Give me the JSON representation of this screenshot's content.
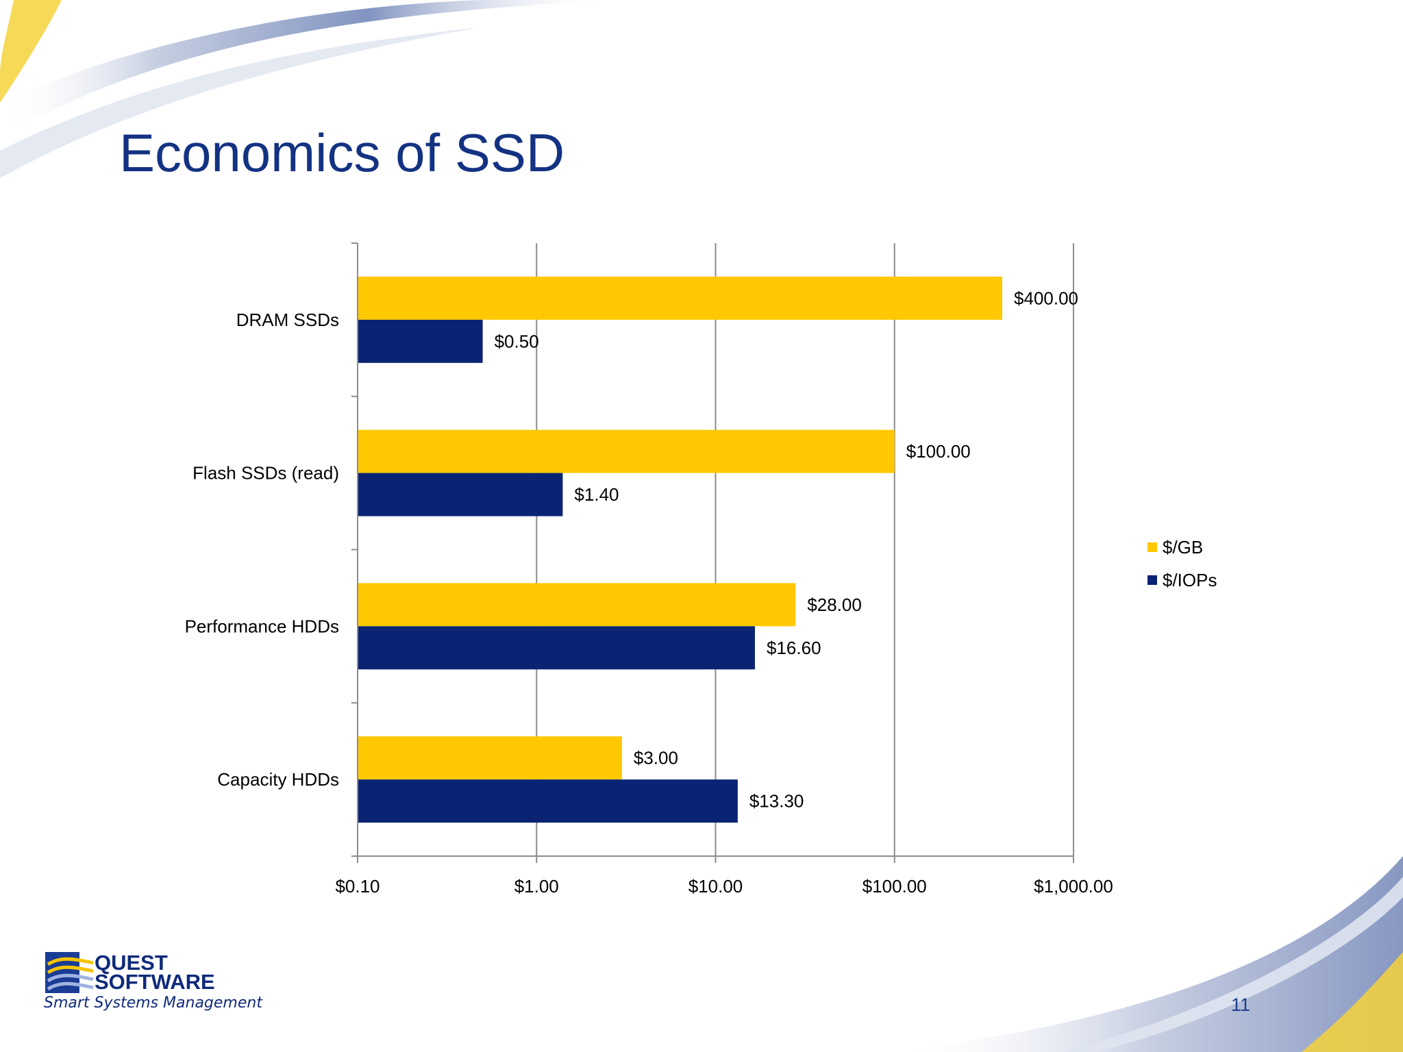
{
  "slide": {
    "title": "Economics of SSD",
    "page_number": "11"
  },
  "logo": {
    "line1": "QUEST",
    "line2": "SOFTWARE",
    "tagline": "Smart Systems Management"
  },
  "colors": {
    "title": "#133282",
    "gb": "#FFC800",
    "iops": "#0A2473",
    "grid": "#8C8C8C"
  },
  "chart_data": {
    "type": "bar",
    "orientation": "horizontal",
    "x_scale": "log",
    "xlim": [
      0.1,
      1000
    ],
    "x_ticks": [
      0.1,
      1,
      10,
      100,
      1000
    ],
    "x_tick_labels": [
      "$0.10",
      "$1.00",
      "$10.00",
      "$100.00",
      "$1,000.00"
    ],
    "grid": "vertical",
    "legend_position": "right",
    "categories": [
      "DRAM SSDs",
      "Flash SSDs (read)",
      "Performance HDDs",
      "Capacity HDDs"
    ],
    "series": [
      {
        "name": "$/GB",
        "color": "#FFC800",
        "values": [
          400,
          100,
          28,
          3
        ],
        "labels": [
          "$400.00",
          "$100.00",
          "$28.00",
          "$3.00"
        ]
      },
      {
        "name": "$/IOPs",
        "color": "#0A2473",
        "values": [
          0.5,
          1.4,
          16.6,
          13.3
        ],
        "labels": [
          "$0.50",
          "$1.40",
          "$16.60",
          "$13.30"
        ]
      }
    ]
  }
}
